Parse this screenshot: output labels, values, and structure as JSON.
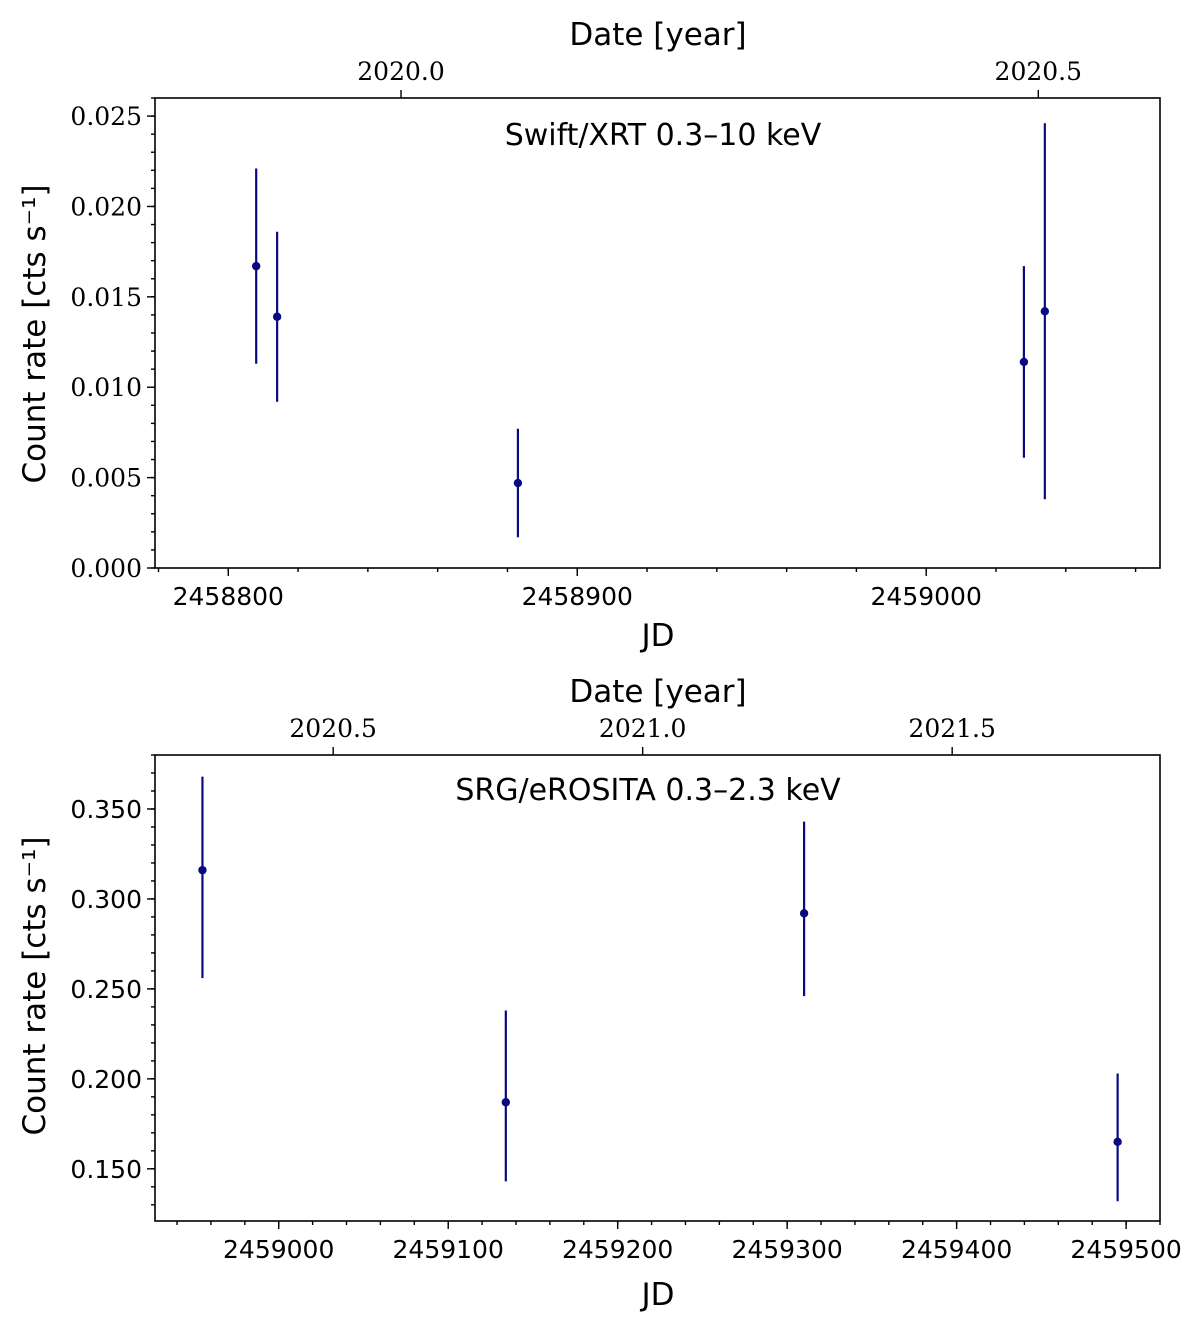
{
  "chart_data": [
    {
      "type": "scatter",
      "title": "Swift/XRT 0.3–10 keV",
      "xlabel": "JD",
      "ylabel": "Count rate [cts s⁻¹]",
      "top_xlabel": "Date [year]",
      "xlim": [
        2458779,
        2459067
      ],
      "ylim": [
        0,
        0.026
      ],
      "x_ticks": [
        2458800,
        2458900,
        2459000
      ],
      "x_tick_labels": [
        "2458800",
        "2458900",
        "2459000"
      ],
      "x_minor_step": 20,
      "y_ticks": [
        0,
        0.005,
        0.01,
        0.015,
        0.02,
        0.025
      ],
      "y_tick_labels": [
        "0.000",
        "0.005",
        "0.010",
        "0.015",
        "0.020",
        "0.025"
      ],
      "y_minor_step": 0.001,
      "top_ticks": [
        2020.0,
        2020.5
      ],
      "top_tick_labels": [
        "2020.0",
        "2020.5"
      ],
      "jd_per_year": 365.25,
      "jd_at_2020": 2458849.5,
      "color": "#0a0a80",
      "points": [
        {
          "x": 2458808,
          "y": 0.0167,
          "yerr_low": 0.0054,
          "yerr_high": 0.0054
        },
        {
          "x": 2458814,
          "y": 0.0139,
          "yerr_low": 0.0047,
          "yerr_high": 0.0047
        },
        {
          "x": 2458883,
          "y": 0.0047,
          "yerr_low": 0.003,
          "yerr_high": 0.003
        },
        {
          "x": 2459028,
          "y": 0.0114,
          "yerr_low": 0.0053,
          "yerr_high": 0.0053
        },
        {
          "x": 2459034,
          "y": 0.0142,
          "yerr_low": 0.0104,
          "yerr_high": 0.0104
        }
      ]
    },
    {
      "type": "scatter",
      "title": "SRG/eROSITA 0.3–2.3 keV",
      "xlabel": "JD",
      "ylabel": "Count rate [cts s⁻¹]",
      "top_xlabel": "Date [year]",
      "xlim": [
        2458927,
        2459520
      ],
      "ylim": [
        0.121,
        0.38
      ],
      "x_ticks": [
        2459000,
        2459100,
        2459200,
        2459300,
        2459400,
        2459500
      ],
      "x_tick_labels": [
        "2459000",
        "2459100",
        "2459200",
        "2459300",
        "2459400",
        "2459500"
      ],
      "x_minor_step": 20,
      "y_ticks": [
        0.15,
        0.2,
        0.25,
        0.3,
        0.35
      ],
      "y_tick_labels": [
        "0.150",
        "0.200",
        "0.250",
        "0.300",
        "0.350"
      ],
      "y_minor_step": 0.01,
      "top_ticks": [
        2020.5,
        2021.0,
        2021.5
      ],
      "top_tick_labels": [
        "2020.5",
        "2021.0",
        "2021.5"
      ],
      "jd_per_year": 365.25,
      "jd_at_2020": 2458849.5,
      "color": "#0a0a80",
      "points": [
        {
          "x": 2458955,
          "y": 0.316,
          "yerr_low": 0.06,
          "yerr_high": 0.052
        },
        {
          "x": 2459134,
          "y": 0.187,
          "yerr_low": 0.044,
          "yerr_high": 0.051
        },
        {
          "x": 2459310,
          "y": 0.292,
          "yerr_low": 0.046,
          "yerr_high": 0.051
        },
        {
          "x": 2459495,
          "y": 0.165,
          "yerr_low": 0.033,
          "yerr_high": 0.038
        }
      ]
    }
  ]
}
